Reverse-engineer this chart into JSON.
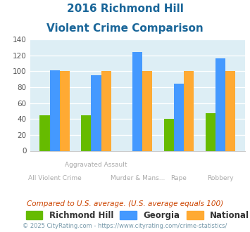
{
  "title_line1": "2016 Richmond Hill",
  "title_line2": "Violent Crime Comparison",
  "categories": [
    "All Violent Crime",
    "Aggravated Assault",
    "Murder & Mans...",
    "Rape",
    "Robbery"
  ],
  "richmond_hill": [
    45,
    45,
    0,
    40,
    47
  ],
  "georgia": [
    101,
    95,
    124,
    84,
    116
  ],
  "national": [
    100,
    100,
    100,
    100,
    100
  ],
  "color_richmond": "#66bb00",
  "color_georgia": "#4499ff",
  "color_national": "#ffaa33",
  "ylim": [
    0,
    140
  ],
  "yticks": [
    0,
    20,
    40,
    60,
    80,
    100,
    120,
    140
  ],
  "bg_color": "#ddeef5",
  "footnote1": "Compared to U.S. average. (U.S. average equals 100)",
  "footnote2": "© 2025 CityRating.com - https://www.cityrating.com/crime-statistics/",
  "title_color": "#1a6699",
  "footnote1_color": "#cc4400",
  "footnote2_color": "#7799aa",
  "legend_label_color": "#333333",
  "xtick_color": "#aaaaaa"
}
